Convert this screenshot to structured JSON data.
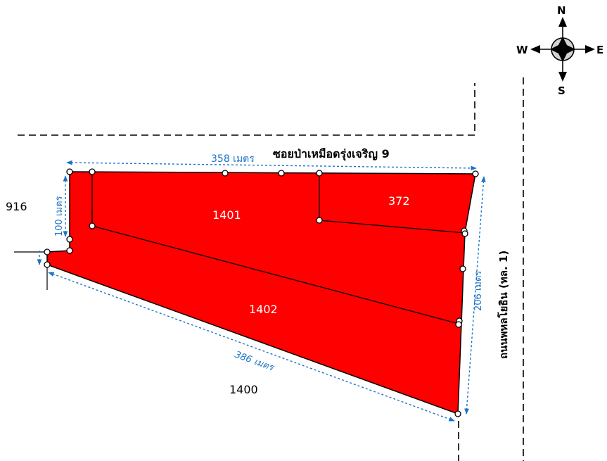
{
  "compass": {
    "north": "N",
    "south": "S",
    "east": "E",
    "west": "W"
  },
  "road_labels": {
    "soi": "ซอยป่าเหมือดรุ่งเจริญ 9",
    "highway": "ถนนพหลโยธิน (ทล. 1)"
  },
  "parcels": {
    "p1401": "1401",
    "p372": "372",
    "p1402": "1402"
  },
  "neighbors": {
    "n916": "916",
    "n1400": "1400"
  },
  "dimensions": {
    "top": "358 เมตร",
    "left": "100 เมตร",
    "right": "206 เมตร",
    "bottom": "386 เมตร"
  },
  "colors": {
    "parcel_fill": "#ff0000",
    "dimension": "#1a73c8"
  }
}
